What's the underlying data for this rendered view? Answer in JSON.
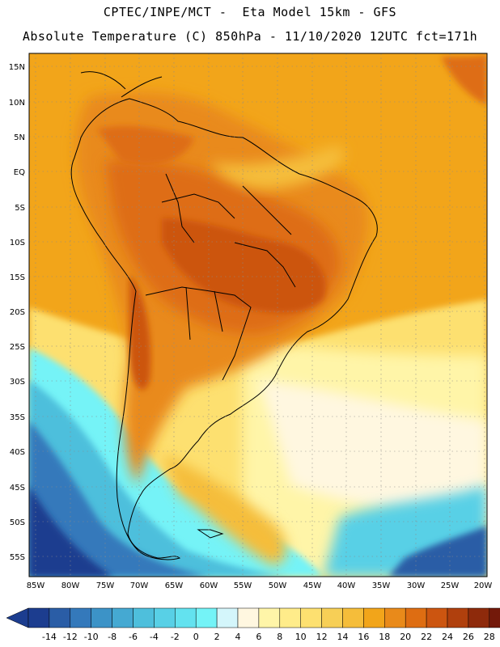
{
  "header": {
    "line1": "CPTEC/INPE/MCT -  Eta Model 15km - GFS",
    "line2": "Absolute Temperature (C) 850hPa - 11/10/2020 12UTC fct=171h"
  },
  "map": {
    "lat_labels": [
      "15N",
      "10N",
      "5N",
      "EQ",
      "5S",
      "10S",
      "15S",
      "20S",
      "25S",
      "30S",
      "35S",
      "40S",
      "45S",
      "50S",
      "55S"
    ],
    "lon_labels": [
      "85W",
      "80W",
      "75W",
      "70W",
      "65W",
      "60W",
      "55W",
      "50W",
      "45W",
      "40W",
      "35W",
      "30W",
      "25W",
      "20W"
    ]
  },
  "colorbar": {
    "labels": [
      "-14",
      "-12",
      "-10",
      "-8",
      "-6",
      "-4",
      "-2",
      "0",
      "2",
      "4",
      "6",
      "8",
      "10",
      "12",
      "14",
      "16",
      "18",
      "20",
      "22",
      "24",
      "26",
      "28"
    ],
    "colors": [
      "#1c3d8f",
      "#2a5da6",
      "#3479bb",
      "#3c93c7",
      "#45a9d2",
      "#4ebfdc",
      "#58d0e6",
      "#63e2ef",
      "#74f3f7",
      "#d4f6fb",
      "#fff7e0",
      "#fff5a8",
      "#ffec8a",
      "#fde070",
      "#f7cf56",
      "#f5bd3a",
      "#f2a51a",
      "#e98a1a",
      "#de6d12",
      "#cc5510",
      "#b0400d",
      "#8e2a0b",
      "#73190a"
    ]
  }
}
